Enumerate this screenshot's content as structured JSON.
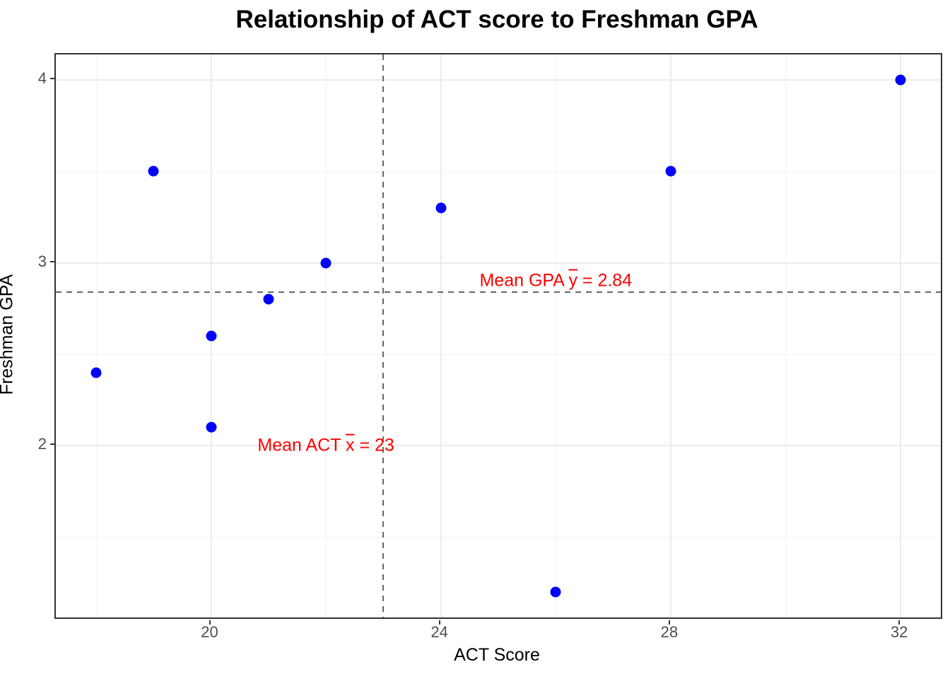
{
  "title": "Relationship of ACT score to Freshman GPA",
  "chart_data": {
    "type": "scatter",
    "title": "Relationship of ACT score to Freshman GPA",
    "xlabel": "ACT Score",
    "ylabel": "Freshman GPA",
    "x": [
      18,
      19,
      20,
      20,
      21,
      22,
      24,
      26,
      28,
      32
    ],
    "y": [
      2.4,
      3.5,
      2.1,
      2.6,
      2.8,
      3.0,
      3.3,
      1.2,
      3.5,
      4.0
    ],
    "xlim": [
      17.3,
      32.7
    ],
    "ylim": [
      1.06,
      4.14
    ],
    "x_major_ticks": [
      20,
      24,
      28,
      32
    ],
    "x_minor_ticks": [
      18,
      22,
      26,
      30
    ],
    "y_major_ticks": [
      2,
      3,
      4
    ],
    "y_minor_ticks": [
      1.5,
      2.5,
      3.5
    ],
    "grid": "major+minor",
    "legend": "none",
    "point_color": "#0000ff",
    "mean_lines": {
      "x_value": 23,
      "y_value": 2.84,
      "style": "dashed",
      "color": "#666666"
    },
    "annotations": [
      {
        "id": "mean-gpa-label",
        "prefix": "Mean GPA ",
        "bar_letter": "y",
        "suffix": " = 2.84",
        "x": 26.0,
        "y": 2.9,
        "color": "#ff0000"
      },
      {
        "id": "mean-act-label",
        "prefix": "Mean ACT ",
        "bar_letter": "x",
        "suffix": " = 23",
        "x": 22.0,
        "y": 2.0,
        "color": "#ff0000"
      }
    ]
  },
  "colors": {
    "background": "#ffffff",
    "panel_border": "#333333",
    "grid_major": "#ebebeb",
    "grid_minor": "#f3f3f3",
    "tick_label": "#4d4d4d",
    "axis_title": "#000000",
    "title_color": "#000000",
    "point": "#0000ff",
    "mean_line": "#666666",
    "annotation": "#ff0000"
  }
}
